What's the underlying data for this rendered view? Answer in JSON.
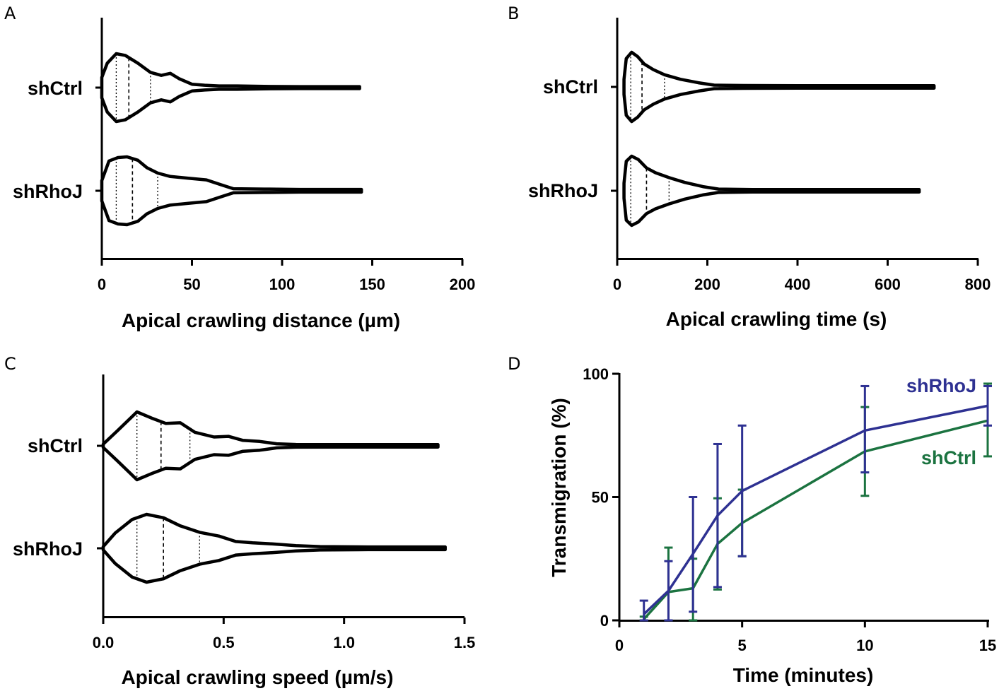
{
  "chart_data": [
    {
      "panel": "A",
      "type": "violin",
      "orientation": "horizontal",
      "categories": [
        "shCtrl",
        "shRhoJ"
      ],
      "xlabel": "Apical crawling distance (µm)",
      "xlim": [
        0,
        200
      ],
      "xticks": [
        0,
        50,
        100,
        150,
        200
      ],
      "series": [
        {
          "name": "shCtrl",
          "min": 0,
          "max": 143,
          "q1": 8,
          "median": 15,
          "q3": 27,
          "profile": [
            [
              0,
              0.3
            ],
            [
              3,
              0.72
            ],
            [
              8,
              1.0
            ],
            [
              13,
              0.95
            ],
            [
              20,
              0.72
            ],
            [
              27,
              0.45
            ],
            [
              33,
              0.36
            ],
            [
              38,
              0.42
            ],
            [
              43,
              0.26
            ],
            [
              50,
              0.1
            ],
            [
              57,
              0.07
            ],
            [
              65,
              0.05
            ],
            [
              75,
              0.05
            ],
            [
              90,
              0.035
            ],
            [
              110,
              0.03
            ],
            [
              143,
              0.03
            ]
          ]
        },
        {
          "name": "shRhoJ",
          "min": 0,
          "max": 144,
          "q1": 8,
          "median": 17,
          "q3": 31,
          "profile": [
            [
              0,
              0.3
            ],
            [
              4,
              0.88
            ],
            [
              9,
              0.98
            ],
            [
              14,
              1.0
            ],
            [
              20,
              0.9
            ],
            [
              25,
              0.68
            ],
            [
              31,
              0.52
            ],
            [
              38,
              0.42
            ],
            [
              48,
              0.37
            ],
            [
              58,
              0.32
            ],
            [
              66,
              0.18
            ],
            [
              73,
              0.06
            ],
            [
              90,
              0.05
            ],
            [
              110,
              0.04
            ],
            [
              144,
              0.04
            ]
          ]
        }
      ]
    },
    {
      "panel": "B",
      "type": "violin",
      "orientation": "horizontal",
      "categories": [
        "shCtrl",
        "shRhoJ"
      ],
      "xlabel": "Apical crawling time (s)",
      "xlim": [
        0,
        800
      ],
      "xticks": [
        0,
        200,
        400,
        600,
        800
      ],
      "series": [
        {
          "name": "shCtrl",
          "min": 15,
          "max": 703,
          "q1": 30,
          "median": 55,
          "q3": 105,
          "profile": [
            [
              15,
              0.22
            ],
            [
              20,
              0.82
            ],
            [
              32,
              1.0
            ],
            [
              45,
              0.88
            ],
            [
              60,
              0.66
            ],
            [
              80,
              0.5
            ],
            [
              105,
              0.35
            ],
            [
              140,
              0.22
            ],
            [
              180,
              0.12
            ],
            [
              215,
              0.05
            ],
            [
              280,
              0.04
            ],
            [
              400,
              0.035
            ],
            [
              703,
              0.035
            ]
          ]
        },
        {
          "name": "shRhoJ",
          "min": 15,
          "max": 670,
          "q1": 30,
          "median": 65,
          "q3": 115,
          "profile": [
            [
              15,
              0.22
            ],
            [
              20,
              0.85
            ],
            [
              32,
              1.0
            ],
            [
              47,
              0.9
            ],
            [
              65,
              0.66
            ],
            [
              85,
              0.52
            ],
            [
              115,
              0.38
            ],
            [
              150,
              0.24
            ],
            [
              190,
              0.12
            ],
            [
              225,
              0.05
            ],
            [
              300,
              0.035
            ],
            [
              670,
              0.035
            ]
          ]
        }
      ]
    },
    {
      "panel": "C",
      "type": "violin",
      "orientation": "horizontal",
      "categories": [
        "shCtrl",
        "shRhoJ"
      ],
      "xlabel": "Apical crawling speed (µm/s)",
      "xlim": [
        0,
        1.5
      ],
      "xticks": [
        "0.0",
        "0.5",
        "1.0",
        "1.5"
      ],
      "series": [
        {
          "name": "shCtrl",
          "min": 0.0,
          "max": 1.39,
          "q1": 0.14,
          "median": 0.24,
          "q3": 0.36,
          "profile": [
            [
              0.0,
              0.05
            ],
            [
              0.06,
              0.45
            ],
            [
              0.14,
              1.0
            ],
            [
              0.2,
              0.82
            ],
            [
              0.26,
              0.66
            ],
            [
              0.32,
              0.68
            ],
            [
              0.38,
              0.4
            ],
            [
              0.46,
              0.26
            ],
            [
              0.52,
              0.28
            ],
            [
              0.58,
              0.16
            ],
            [
              0.65,
              0.13
            ],
            [
              0.72,
              0.06
            ],
            [
              0.8,
              0.04
            ],
            [
              1.0,
              0.035
            ],
            [
              1.39,
              0.035
            ]
          ]
        },
        {
          "name": "shRhoJ",
          "min": 0.0,
          "max": 1.42,
          "q1": 0.14,
          "median": 0.25,
          "q3": 0.4,
          "profile": [
            [
              0.0,
              0.05
            ],
            [
              0.05,
              0.45
            ],
            [
              0.12,
              0.85
            ],
            [
              0.18,
              1.0
            ],
            [
              0.25,
              0.9
            ],
            [
              0.32,
              0.66
            ],
            [
              0.4,
              0.47
            ],
            [
              0.48,
              0.36
            ],
            [
              0.55,
              0.2
            ],
            [
              0.62,
              0.16
            ],
            [
              0.7,
              0.13
            ],
            [
              0.8,
              0.08
            ],
            [
              0.9,
              0.05
            ],
            [
              1.1,
              0.04
            ],
            [
              1.42,
              0.04
            ]
          ]
        }
      ]
    },
    {
      "panel": "D",
      "type": "line",
      "xlabel": "Time (minutes)",
      "ylabel": "Transmigration (%)",
      "xlim": [
        0,
        15
      ],
      "ylim": [
        0,
        100
      ],
      "xticks": [
        0,
        5,
        10,
        15
      ],
      "yticks": [
        0,
        50,
        100
      ],
      "series": [
        {
          "name": "shRhoJ",
          "color": "#2e3192",
          "x": [
            1,
            2,
            3,
            4,
            5,
            10,
            15
          ],
          "y": [
            2.5,
            12,
            27,
            42.5,
            52.5,
            77,
            87
          ],
          "err_high": [
            8,
            24,
            50,
            71.5,
            79,
            95,
            95
          ],
          "err_low": [
            0,
            0,
            3.5,
            13.5,
            26,
            60,
            79
          ]
        },
        {
          "name": "shCtrl",
          "color": "#1b7340",
          "x": [
            1,
            2,
            3,
            4,
            5,
            10,
            15
          ],
          "y": [
            0.5,
            11.5,
            13,
            31,
            39.5,
            68.5,
            81
          ],
          "err_high": [
            1.5,
            29.5,
            25,
            49.5,
            53,
            86.5,
            96
          ],
          "err_low": [
            0,
            0,
            0,
            12.5,
            26,
            50.5,
            66.5
          ]
        }
      ]
    }
  ],
  "panel_letters": [
    "A",
    "B",
    "C",
    "D"
  ]
}
